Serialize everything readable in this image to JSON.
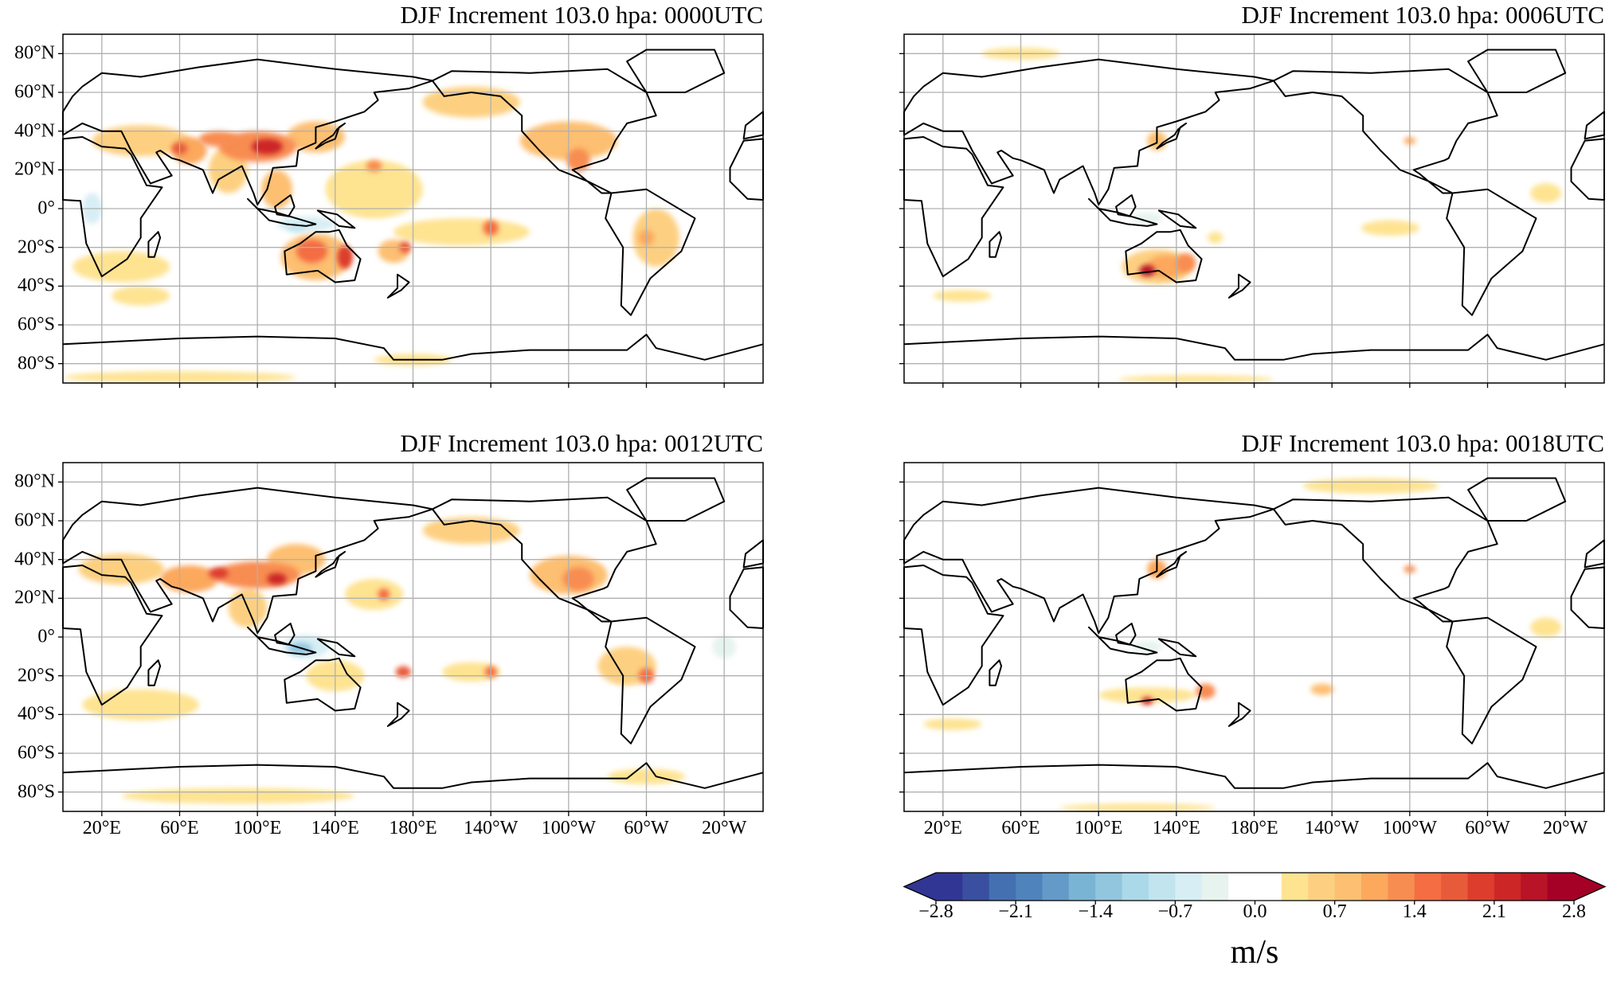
{
  "chart_data": {
    "type": "map",
    "projection": "PlateCarree, central longitude 180",
    "lon_range": [
      0,
      360
    ],
    "lat_range": [
      -90,
      90
    ],
    "lat_ticks": [
      "80°N",
      "60°N",
      "40°N",
      "20°N",
      "0°",
      "20°S",
      "40°S",
      "60°S",
      "80°S"
    ],
    "lat_values": [
      80,
      60,
      40,
      20,
      0,
      -20,
      -40,
      -60,
      -80
    ],
    "lon_ticks": [
      "20°E",
      "60°E",
      "100°E",
      "140°E",
      "180°E",
      "140°W",
      "100°W",
      "60°W",
      "20°W"
    ],
    "lon_values": [
      20,
      60,
      100,
      140,
      180,
      220,
      260,
      300,
      340
    ],
    "grid": true,
    "panels": [
      {
        "title": "DJF Increment 103.0 hpa: 0000UTC",
        "anomalies": [
          [
            40,
            35,
            25,
            8,
            0.5
          ],
          [
            65,
            30,
            9,
            7,
            1.1
          ],
          [
            100,
            32,
            20,
            8,
            1.2
          ],
          [
            105,
            32,
            8,
            4,
            2.3
          ],
          [
            80,
            36,
            10,
            4,
            1.3
          ],
          [
            60,
            31,
            4,
            3,
            1.8
          ],
          [
            130,
            37,
            15,
            8,
            0.7
          ],
          [
            85,
            20,
            10,
            12,
            0.5
          ],
          [
            110,
            10,
            8,
            10,
            0.7
          ],
          [
            160,
            10,
            25,
            15,
            0.35
          ],
          [
            205,
            -12,
            35,
            7,
            0.35
          ],
          [
            160,
            22,
            4,
            3,
            1.2
          ],
          [
            220,
            -10,
            4,
            4,
            1.6
          ],
          [
            130,
            -25,
            18,
            12,
            0.9
          ],
          [
            128,
            -22,
            8,
            6,
            1.5
          ],
          [
            145,
            -25,
            4,
            6,
            1.9
          ],
          [
            170,
            -22,
            8,
            6,
            0.9
          ],
          [
            176,
            -20,
            3,
            3,
            1.8
          ],
          [
            260,
            35,
            25,
            10,
            0.8
          ],
          [
            265,
            25,
            6,
            6,
            1.3
          ],
          [
            210,
            55,
            25,
            8,
            0.5
          ],
          [
            305,
            -15,
            12,
            15,
            0.5
          ],
          [
            300,
            -15,
            4,
            4,
            1.0
          ],
          [
            30,
            -30,
            25,
            8,
            0.35
          ],
          [
            40,
            -45,
            15,
            5,
            0.35
          ],
          [
            60,
            -87,
            60,
            3,
            0.35
          ],
          [
            180,
            -78,
            20,
            3,
            0.35
          ],
          [
            15,
            0,
            5,
            8,
            -0.5
          ],
          [
            125,
            -8,
            15,
            4,
            -0.5
          ],
          [
            120,
            -10,
            5,
            2,
            -0.9
          ]
        ]
      },
      {
        "title": "DJF Increment 103.0 hpa: 0006UTC",
        "anomalies": [
          [
            130,
            -30,
            18,
            9,
            0.5
          ],
          [
            135,
            -30,
            10,
            6,
            1.0
          ],
          [
            125,
            -32,
            4,
            3,
            2.4
          ],
          [
            145,
            -28,
            5,
            5,
            1.2
          ],
          [
            250,
            -10,
            15,
            4,
            0.4
          ],
          [
            330,
            8,
            8,
            5,
            0.4
          ],
          [
            130,
            35,
            5,
            5,
            0.9
          ],
          [
            60,
            80,
            20,
            3,
            0.35
          ],
          [
            30,
            -45,
            15,
            3,
            0.3
          ],
          [
            160,
            -15,
            4,
            3,
            0.4
          ],
          [
            260,
            35,
            3,
            2,
            1.0
          ],
          [
            125,
            -5,
            8,
            3,
            -0.4
          ],
          [
            150,
            -88,
            40,
            2,
            0.35
          ]
        ]
      },
      {
        "title": "DJF Increment 103.0 hpa: 0012UTC",
        "anomalies": [
          [
            30,
            35,
            22,
            8,
            0.6
          ],
          [
            65,
            30,
            15,
            7,
            1.1
          ],
          [
            100,
            32,
            22,
            7,
            1.2
          ],
          [
            110,
            30,
            5,
            3,
            2.3
          ],
          [
            80,
            33,
            5,
            3,
            1.9
          ],
          [
            120,
            40,
            15,
            8,
            0.7
          ],
          [
            95,
            15,
            10,
            10,
            0.5
          ],
          [
            125,
            -5,
            12,
            6,
            -0.6
          ],
          [
            122,
            -6,
            6,
            3,
            -1.3
          ],
          [
            290,
            -15,
            15,
            10,
            0.5
          ],
          [
            300,
            -20,
            4,
            4,
            1.6
          ],
          [
            260,
            32,
            20,
            10,
            0.8
          ],
          [
            265,
            30,
            8,
            6,
            1.3
          ],
          [
            210,
            55,
            25,
            7,
            0.5
          ],
          [
            160,
            22,
            15,
            8,
            0.4
          ],
          [
            165,
            22,
            3,
            3,
            1.4
          ],
          [
            175,
            -18,
            4,
            3,
            1.8
          ],
          [
            140,
            -20,
            15,
            8,
            0.35
          ],
          [
            40,
            -35,
            30,
            8,
            0.35
          ],
          [
            210,
            -18,
            15,
            5,
            0.35
          ],
          [
            220,
            -18,
            3,
            3,
            1.5
          ],
          [
            90,
            -82,
            60,
            4,
            0.35
          ],
          [
            300,
            -72,
            20,
            4,
            0.45
          ],
          [
            340,
            -5,
            6,
            6,
            -0.4
          ]
        ]
      },
      {
        "title": "DJF Increment 103.0 hpa: 0018UTC",
        "anomalies": [
          [
            125,
            -30,
            25,
            4,
            0.45
          ],
          [
            125,
            -33,
            3,
            2,
            2.2
          ],
          [
            155,
            -28,
            5,
            4,
            1.3
          ],
          [
            130,
            35,
            5,
            5,
            1.0
          ],
          [
            240,
            78,
            35,
            4,
            0.45
          ],
          [
            330,
            5,
            8,
            5,
            0.45
          ],
          [
            215,
            -27,
            6,
            3,
            0.8
          ],
          [
            260,
            35,
            3,
            2,
            1.2
          ],
          [
            120,
            -88,
            40,
            2,
            0.35
          ],
          [
            25,
            -45,
            15,
            3,
            0.3
          ],
          [
            125,
            -5,
            8,
            3,
            -0.3
          ]
        ]
      }
    ],
    "colorbar": {
      "ticks": [
        "−2.8",
        "−2.1",
        "−1.4",
        "−0.7",
        "0.0",
        "0.7",
        "1.4",
        "2.1",
        "2.8"
      ],
      "tick_values": [
        -2.8,
        -2.1,
        -1.4,
        -0.7,
        0.0,
        0.7,
        1.4,
        2.1,
        2.8
      ],
      "min": -2.8,
      "max": 2.8,
      "extend": "both",
      "label": "m/s",
      "colors": [
        "#313695",
        "#3a4fa0",
        "#4470b1",
        "#4f83bc",
        "#649ac8",
        "#7ab4d4",
        "#92c5de",
        "#abd9e9",
        "#c1e4ef",
        "#d7eef5",
        "#e6f3ee",
        "#ffffff",
        "#ffffff",
        "#fee391",
        "#fdd081",
        "#fdbf71",
        "#fca85d",
        "#f88d52",
        "#f46d43",
        "#e85b3a",
        "#dd3d2d",
        "#cc2627",
        "#b81327",
        "#a50026"
      ]
    }
  }
}
